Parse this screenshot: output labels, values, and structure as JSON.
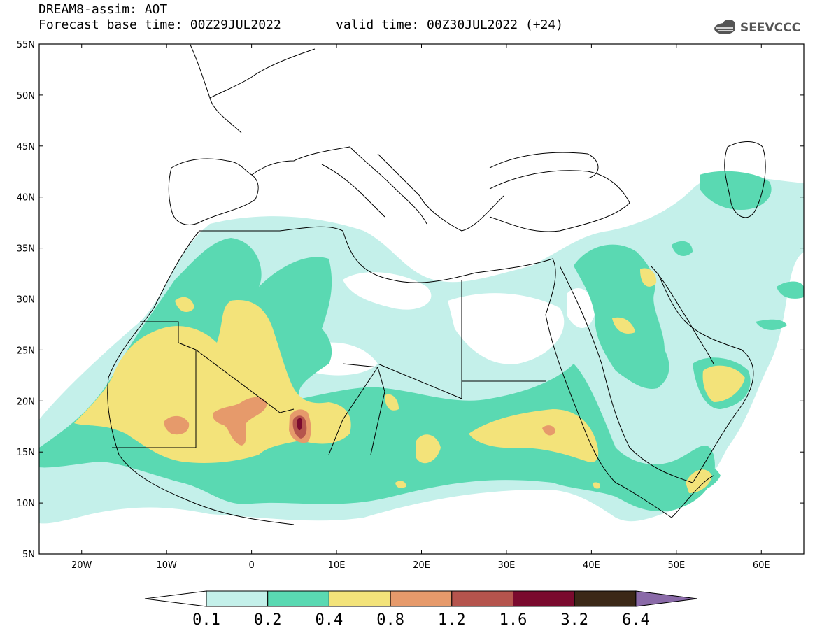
{
  "header": {
    "title": "DREAM8-assim: AOT",
    "base_time": "Forecast base time: 00Z29JUL2022",
    "valid_time": "valid time: 00Z30JUL2022 (+24)",
    "logo_text": "SEEVCCC"
  },
  "map": {
    "lat_labels": [
      "55N",
      "50N",
      "45N",
      "40N",
      "35N",
      "30N",
      "25N",
      "20N",
      "15N",
      "10N",
      "5N"
    ],
    "lon_labels": [
      "20W",
      "10W",
      "0",
      "10E",
      "20E",
      "30E",
      "40E",
      "50E",
      "60E"
    ],
    "lat_range": [
      5,
      55
    ],
    "lon_range": [
      -25,
      65
    ]
  },
  "colorbar": {
    "labels": [
      "0.1",
      "0.2",
      "0.4",
      "0.8",
      "1.2",
      "1.6",
      "3.2",
      "6.4"
    ],
    "colors": [
      "#ffffff",
      "#c4f0ea",
      "#5ad9b2",
      "#f3e37a",
      "#e69a6b",
      "#b5544d",
      "#7a0a2e",
      "#3b2817",
      "#8a6aa8"
    ]
  }
}
